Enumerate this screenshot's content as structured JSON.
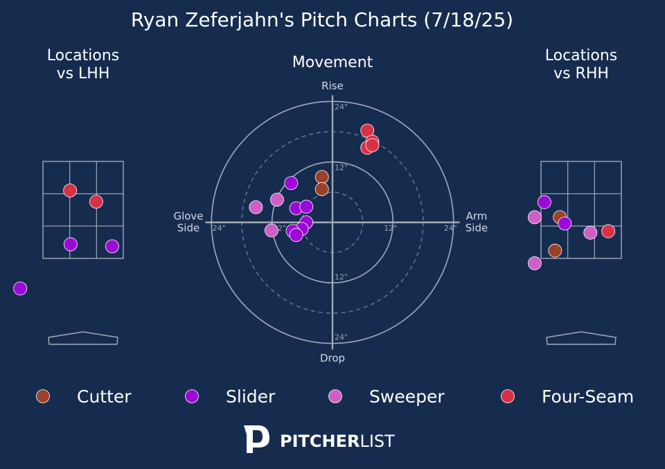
{
  "title": "Ryan Zeferjahn's Pitch Charts (7/18/25)",
  "colors": {
    "background": "#162c4f",
    "cutter": "#9a4127",
    "slider": "#9b09d6",
    "sweeper": "#cf5fc6",
    "four_seam": "#d92f47",
    "lines": "#a3abb8"
  },
  "legend": [
    {
      "name": "Cutter",
      "color": "#9a4127"
    },
    {
      "name": "Slider",
      "color": "#9b09d6"
    },
    {
      "name": "Sweeper",
      "color": "#cf5fc6"
    },
    {
      "name": "Four-Seam",
      "color": "#d92f47"
    }
  ],
  "brand": {
    "bold": "PITCHER",
    "light": "LIST"
  },
  "chart_data": [
    {
      "type": "scatter",
      "title": "Locations\nvs LHH",
      "units": "feet (plate x, plate z)",
      "strike_zone": {
        "x": [
          -0.83,
          0.83
        ],
        "z": [
          1.5,
          3.5
        ]
      },
      "xlim": [
        -1.5,
        1.5
      ],
      "series": [
        {
          "name": "Four-Seam",
          "points": [
            [
              -0.27,
              2.9
            ],
            [
              0.27,
              2.67
            ]
          ]
        },
        {
          "name": "Slider",
          "points": [
            [
              -0.26,
              1.79
            ],
            [
              0.6,
              1.75
            ],
            [
              -1.3,
              0.88
            ]
          ]
        }
      ]
    },
    {
      "type": "scatter",
      "title": "Movement",
      "units": "inches (horizontal break, induced vertical break)",
      "axis_labels": {
        "top": "Rise",
        "bottom": "Drop",
        "left": "Glove\nSide",
        "right": "Arm\nSide"
      },
      "ring_labels": [
        "12\"",
        "24\""
      ],
      "range": [
        -24,
        24
      ],
      "series": [
        {
          "name": "Cutter",
          "points": [
            [
              -2.1,
              9.0
            ],
            [
              -2.1,
              6.6
            ]
          ]
        },
        {
          "name": "Slider",
          "points": [
            [
              -8.2,
              7.8
            ],
            [
              -7.2,
              2.8
            ],
            [
              -5.2,
              3.1
            ],
            [
              -5.2,
              0.0
            ],
            [
              -6.1,
              -1.3
            ],
            [
              -7.9,
              -1.7
            ],
            [
              -7.2,
              -2.5
            ]
          ]
        },
        {
          "name": "Sweeper",
          "points": [
            [
              -15.2,
              3.0
            ],
            [
              -11.0,
              4.5
            ],
            [
              -12.1,
              -1.6
            ]
          ]
        },
        {
          "name": "Four-Seam",
          "points": [
            [
              6.9,
              18.2
            ],
            [
              7.9,
              16.0
            ],
            [
              6.9,
              14.8
            ],
            [
              7.9,
              15.3
            ]
          ]
        }
      ]
    },
    {
      "type": "scatter",
      "title": "Locations\nvs RHH",
      "units": "feet (plate x, plate z)",
      "strike_zone": {
        "x": [
          -0.83,
          0.83
        ],
        "z": [
          1.5,
          3.5
        ]
      },
      "xlim": [
        -1.5,
        1.5
      ],
      "series": [
        {
          "name": "Cutter",
          "points": [
            [
              -0.44,
              2.35
            ],
            [
              -0.54,
              1.66
            ]
          ]
        },
        {
          "name": "Slider",
          "points": [
            [
              -0.76,
              2.66
            ],
            [
              -0.34,
              2.22
            ]
          ]
        },
        {
          "name": "Sweeper",
          "points": [
            [
              -0.96,
              2.35
            ],
            [
              0.19,
              2.03
            ],
            [
              -0.96,
              1.4
            ]
          ]
        },
        {
          "name": "Four-Seam",
          "points": [
            [
              0.56,
              2.06
            ]
          ]
        }
      ]
    }
  ]
}
